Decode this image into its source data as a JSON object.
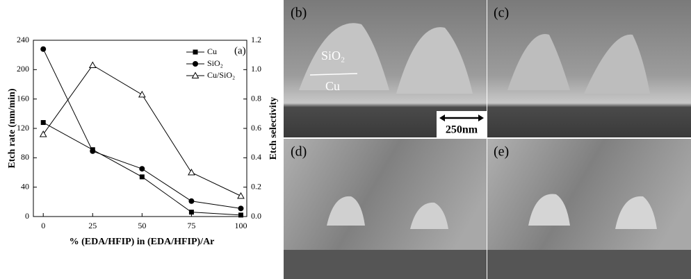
{
  "chart_data": {
    "type": "line",
    "x_label": "% (EDA/HFIP) in (EDA/HFIP)/Ar",
    "y_label": "Etch rate (nm/min)",
    "y2_label": "Etch selectivity",
    "annotation": "(a)",
    "x": [
      0,
      25,
      50,
      75,
      100
    ],
    "xlim": [
      -5,
      103
    ],
    "xticks": [
      0,
      25,
      50,
      75,
      100
    ],
    "ylim": [
      0,
      240
    ],
    "yticks": [
      0,
      40,
      80,
      120,
      160,
      200,
      240
    ],
    "y2lim": [
      0,
      1.2
    ],
    "y2ticks": [
      {
        "value": 0,
        "label": "0.0"
      },
      0.2,
      0.4,
      0.6,
      0.8,
      {
        "value": 1,
        "label": "1.0"
      },
      {
        "value": 1.2,
        "label": "1.2"
      }
    ],
    "legend": "upper right",
    "series": [
      {
        "name": "Cu",
        "color": "#000000",
        "marker": "square",
        "values": [
          128,
          91,
          54,
          6,
          2
        ]
      },
      {
        "name": "SiO₂",
        "color": "#000000",
        "marker": "circle",
        "values": [
          228,
          89,
          65,
          21,
          11
        ]
      },
      {
        "name": "Cu/SiO₂",
        "color": "#000000",
        "marker": "open-triangle",
        "axis": "y2",
        "values": [
          0.56,
          1.03,
          0.83,
          0.3,
          0.14
        ]
      }
    ]
  },
  "panels": [
    {
      "label": "(b)",
      "annotations": [
        "SiO₂",
        "Cu"
      ],
      "scale_bar": "250nm"
    },
    {
      "label": "(c)"
    },
    {
      "label": "(d)"
    },
    {
      "label": "(e)"
    }
  ]
}
